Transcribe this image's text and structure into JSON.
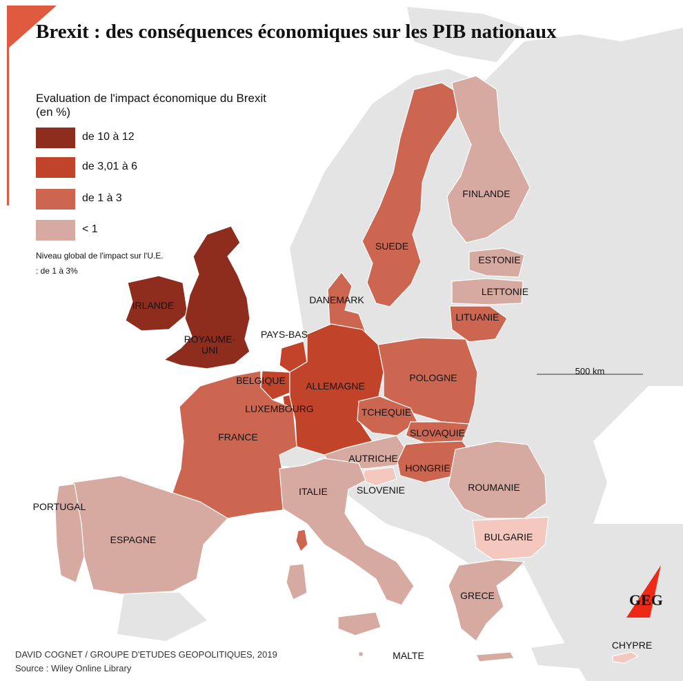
{
  "title": "Brexit : des conséquences économiques sur les PIB nationaux",
  "legend": {
    "title": "Evaluation de l'impact économique du Brexit (en %)",
    "items": [
      {
        "label": "de 10 à 12",
        "color": "#8e2c1e"
      },
      {
        "label": "de 3,01 à 6",
        "color": "#c0432a"
      },
      {
        "label": "de 1 à 3",
        "color": "#cc6651"
      },
      {
        "label": "< 1",
        "color": "#d7aaa1"
      }
    ],
    "note": "Niveau global de l'impact sur l'U.E. : de 1 à 3%"
  },
  "colors": {
    "sea": "#ffffff",
    "non_eu": "#e4e4e4",
    "cat_10_12": "#8e2c1e",
    "cat_3_6": "#c0432a",
    "cat_1_3": "#cc6651",
    "cat_lt1": "#d7aaa1",
    "cat_lt1_light": "#f4c7bf",
    "accent": "#e05a3f"
  },
  "countries": [
    {
      "label": "IRLANDE",
      "category": "de 10 à 12"
    },
    {
      "label": "ROYAUME-UNI",
      "category": "de 10 à 12"
    },
    {
      "label": "ALLEMAGNE",
      "category": "de 3,01 à 6"
    },
    {
      "label": "BELGIQUE",
      "category": "de 3,01 à 6"
    },
    {
      "label": "PAYS-BAS",
      "category": "de 3,01 à 6"
    },
    {
      "label": "LUXEMBOURG",
      "category": "de 3,01 à 6"
    },
    {
      "label": "DANEMARK",
      "category": "de 1 à 3"
    },
    {
      "label": "SUEDE",
      "category": "de 1 à 3"
    },
    {
      "label": "FRANCE",
      "category": "de 1 à 3"
    },
    {
      "label": "POLOGNE",
      "category": "de 1 à 3"
    },
    {
      "label": "TCHEQUIE",
      "category": "de 1 à 3"
    },
    {
      "label": "SLOVAQUIE",
      "category": "de 1 à 3"
    },
    {
      "label": "HONGRIE",
      "category": "de 1 à 3"
    },
    {
      "label": "LITUANIE",
      "category": "de 1 à 3"
    },
    {
      "label": "FINLANDE",
      "category": "< 1"
    },
    {
      "label": "ESTONIE",
      "category": "< 1"
    },
    {
      "label": "LETTONIE",
      "category": "< 1"
    },
    {
      "label": "AUTRICHE",
      "category": "< 1"
    },
    {
      "label": "SLOVENIE",
      "category": "< 1"
    },
    {
      "label": "ITALIE",
      "category": "< 1"
    },
    {
      "label": "ROUMANIE",
      "category": "< 1"
    },
    {
      "label": "BULGARIE",
      "category": "< 1"
    },
    {
      "label": "GRECE",
      "category": "< 1"
    },
    {
      "label": "PORTUGAL",
      "category": "< 1"
    },
    {
      "label": "ESPAGNE",
      "category": "< 1"
    },
    {
      "label": "MALTE",
      "category": "< 1"
    },
    {
      "label": "CHYPRE",
      "category": "< 1"
    }
  ],
  "scale": {
    "label": "500 km"
  },
  "credits": {
    "author": "DAVID COGNET / GROUPE D'ETUDES GEOPOLITIQUES, 2019",
    "source": "Source : Wiley Online Library"
  },
  "logo": {
    "text": "GEG"
  }
}
